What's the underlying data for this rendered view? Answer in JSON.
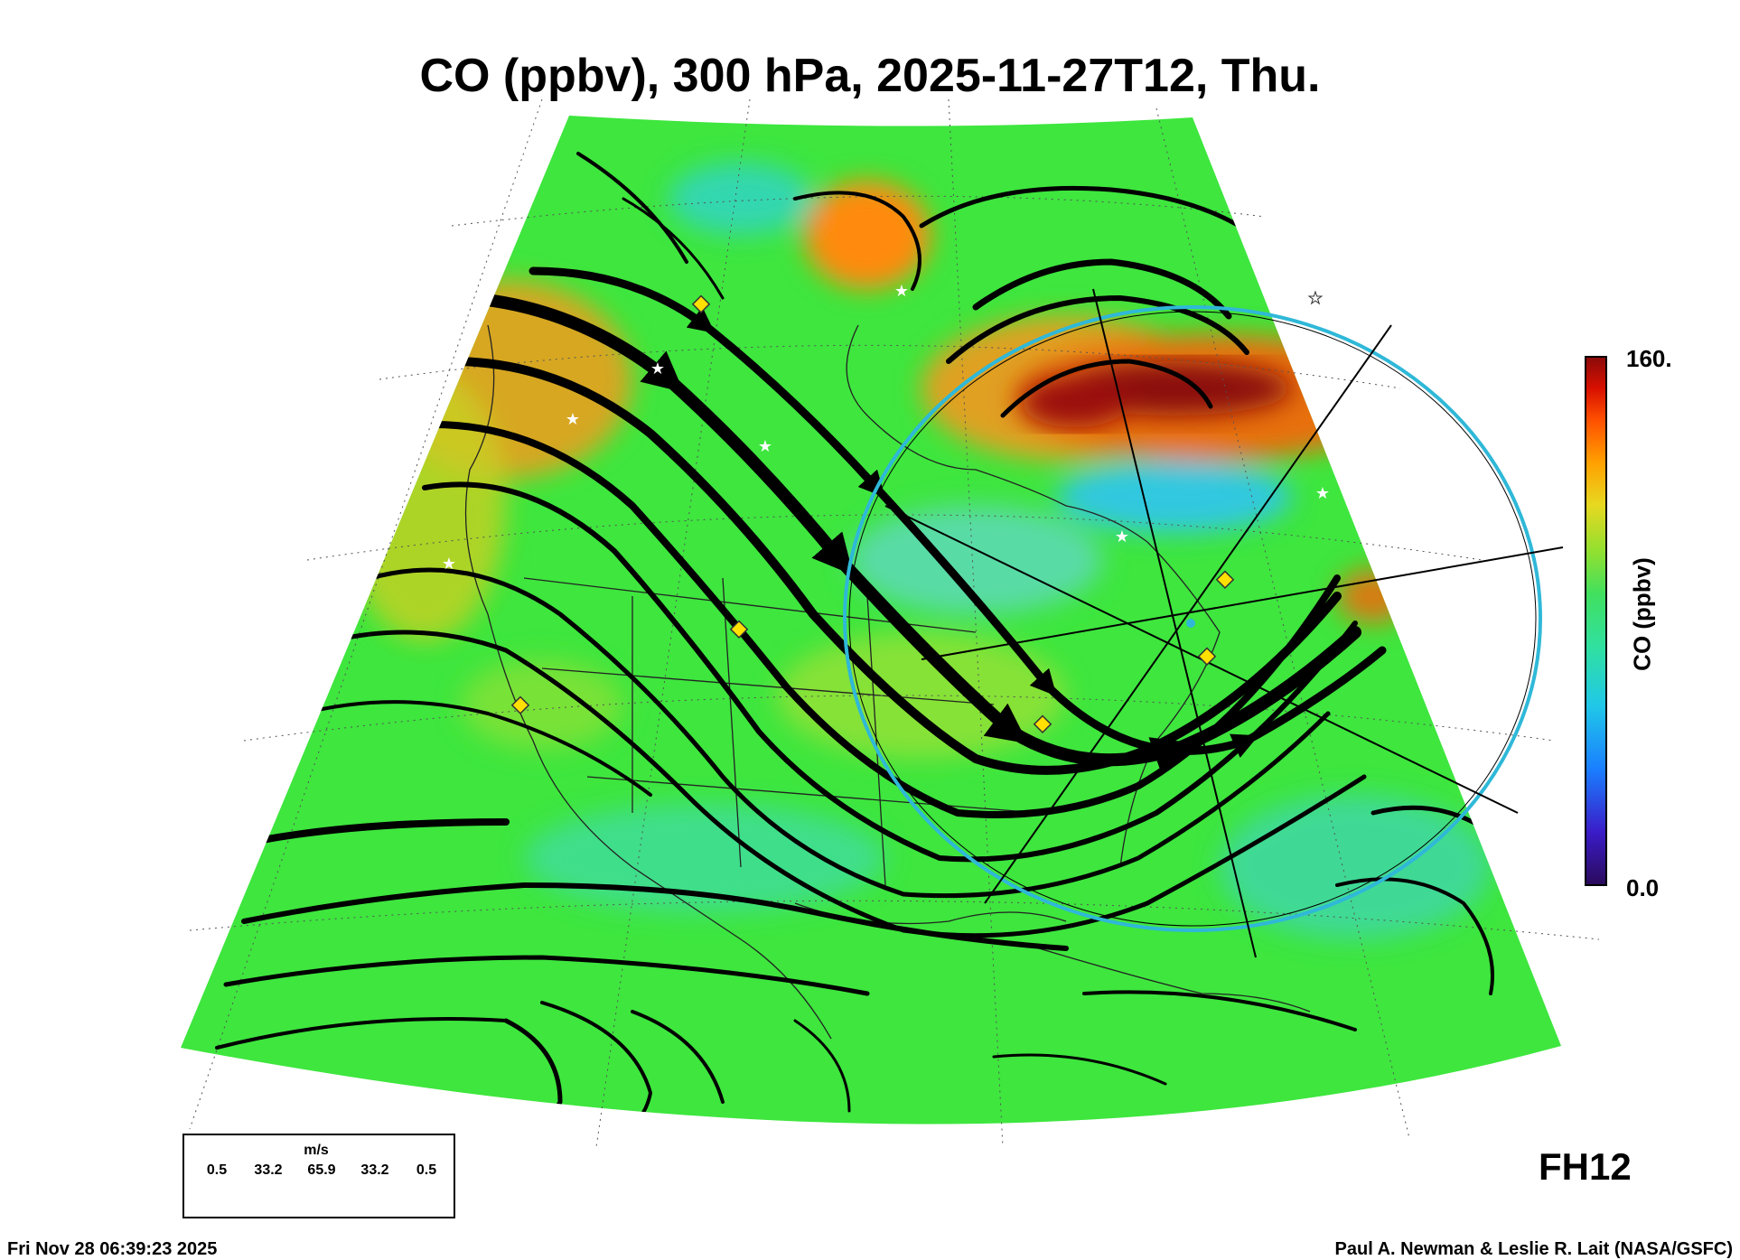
{
  "title": "CO (ppbv), 300 hPa, 2025-11-27T12, Thu.",
  "colorbar": {
    "label": "CO (ppbv)",
    "max_label": "160.",
    "min_label": "0.0",
    "range": [
      0,
      160
    ],
    "colors": [
      "#2a0a5a",
      "#3a1cc8",
      "#1a7fff",
      "#20c8e8",
      "#30e0a0",
      "#40e060",
      "#90e030",
      "#e8d820",
      "#ffa000",
      "#ff5000",
      "#d81000",
      "#8a0a0a"
    ]
  },
  "forecast_hour": "FH12",
  "wind_legend": {
    "unit": "m/s",
    "values": [
      "0.5",
      "33.2",
      "65.9",
      "33.2",
      "0.5"
    ]
  },
  "timestamp": "Fri Nov 28 06:39:23 2025",
  "credit": "Paul A. Newman & Leslie R. Lait (NASA/GSFC)",
  "colors": {
    "field_base": "#3ee63e",
    "high_co": "#e87a10",
    "very_high_co": "#8a1010",
    "low_co": "#20c8d0",
    "range_ring": "#2fb8d8",
    "marker_yellow": "#ffe000"
  }
}
